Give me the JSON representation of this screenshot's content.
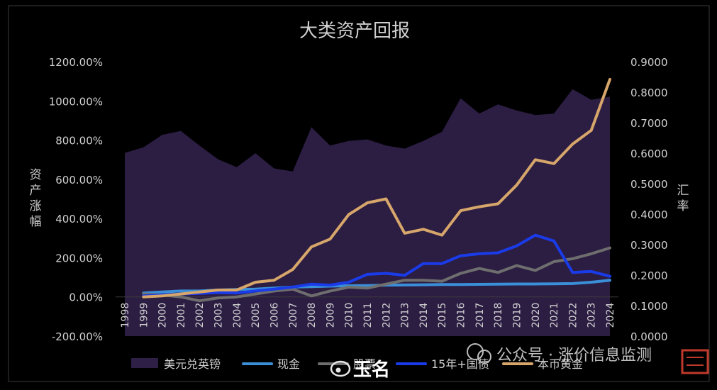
{
  "chart_data": {
    "type": "line",
    "title": "大类资产回报",
    "ylabel_left": "资产涨幅",
    "ylabel_right": "汇率",
    "categories": [
      "1998",
      "1999",
      "2000",
      "2001",
      "2002",
      "2003",
      "2004",
      "2005",
      "2006",
      "2007",
      "2008",
      "2009",
      "2010",
      "2011",
      "2012",
      "2013",
      "2014",
      "2015",
      "2016",
      "2017",
      "2018",
      "2019",
      "2020",
      "2021",
      "2022",
      "2023",
      "2024"
    ],
    "y_left": {
      "min": -200,
      "max": 1200,
      "step": 200,
      "ticks": [
        "-200.00%",
        "0.00%",
        "200.00%",
        "400.00%",
        "600.00%",
        "800.00%",
        "1000.00%",
        "1200.00%"
      ]
    },
    "y_right": {
      "min": 0,
      "max": 0.9,
      "step": 0.1,
      "ticks": [
        "0.0000",
        "0.1000",
        "0.2000",
        "0.3000",
        "0.4000",
        "0.5000",
        "0.6000",
        "0.7000",
        "0.8000",
        "0.9000"
      ]
    },
    "area_series": {
      "name": "美元兑英镑",
      "axis": "right",
      "color": "#2e1f47",
      "values": [
        0.601,
        0.619,
        0.66,
        0.673,
        0.625,
        0.58,
        0.554,
        0.6,
        0.55,
        0.54,
        0.685,
        0.625,
        0.64,
        0.645,
        0.625,
        0.615,
        0.64,
        0.67,
        0.78,
        0.73,
        0.76,
        0.74,
        0.725,
        0.73,
        0.81,
        0.775,
        0.785
      ]
    },
    "series": [
      {
        "name": "现金",
        "axis": "left",
        "color": "#3a8fd8",
        "values": [
          null,
          20,
          25,
          30,
          30,
          35,
          38,
          40,
          45,
          50,
          52,
          55,
          57,
          58,
          60,
          61,
          62,
          63,
          63,
          64,
          65,
          66,
          66,
          67,
          68,
          75,
          85
        ]
      },
      {
        "name": "股票",
        "axis": "left",
        "color": "#6e6e6e",
        "values": [
          null,
          15,
          10,
          0,
          -20,
          -5,
          0,
          15,
          30,
          40,
          5,
          30,
          50,
          45,
          65,
          85,
          85,
          80,
          120,
          145,
          125,
          160,
          135,
          180,
          195,
          220,
          250
        ]
      },
      {
        "name": "15年+国债",
        "axis": "left",
        "color": "#1a3be8",
        "values": [
          null,
          5,
          10,
          15,
          18,
          22,
          20,
          30,
          40,
          50,
          65,
          60,
          75,
          115,
          120,
          110,
          170,
          170,
          210,
          220,
          225,
          260,
          315,
          285,
          125,
          130,
          105
        ]
      },
      {
        "name": "本币黄金",
        "axis": "left",
        "color": "#d6a66a",
        "values": [
          null,
          0,
          5,
          15,
          25,
          35,
          35,
          75,
          85,
          140,
          255,
          295,
          420,
          480,
          500,
          325,
          345,
          315,
          440,
          460,
          475,
          570,
          700,
          680,
          780,
          850,
          1110
        ]
      }
    ],
    "legend": {
      "position": "bottom",
      "entries": [
        "美元兑英镑",
        "现金",
        "股票",
        "15年+国债",
        "本币黄金"
      ]
    },
    "watermark": {
      "account": "玉名",
      "source": "公众号 · 涨价信息监测"
    }
  }
}
